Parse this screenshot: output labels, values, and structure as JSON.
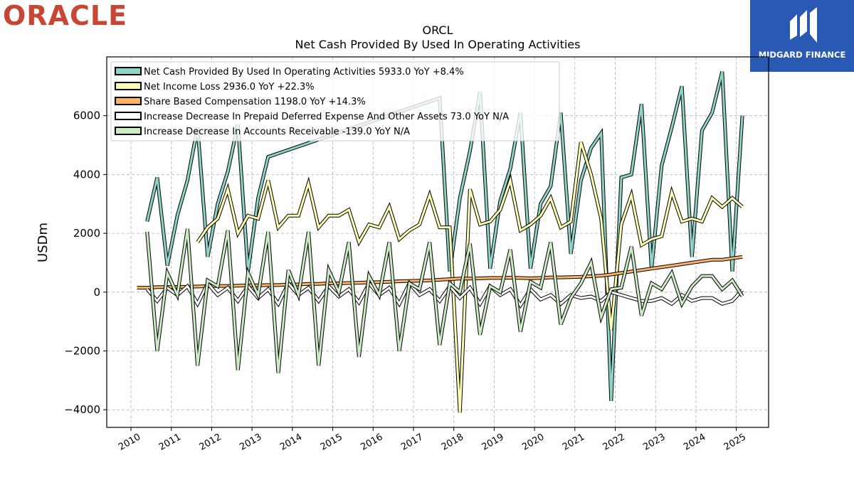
{
  "brand": {
    "left_logo_text": "ORACLE",
    "right_logo_text": "MIDGARD FINANCE"
  },
  "chart_data": {
    "type": "line",
    "title": "ORCL",
    "subtitle": "Net Cash Provided By Used In Operating Activities",
    "xlabel": "",
    "ylabel": "USDm",
    "xlim": [
      2009.4,
      2025.8
    ],
    "ylim": [
      -4600,
      8000
    ],
    "grid": true,
    "legend_position": "top-left",
    "x_ticks": [
      "2010",
      "2011",
      "2012",
      "2013",
      "2014",
      "2015",
      "2016",
      "2017",
      "2018",
      "2019",
      "2020",
      "2021",
      "2022",
      "2023",
      "2024",
      "2025"
    ],
    "y_ticks": [
      -4000,
      -2000,
      0,
      2000,
      4000,
      6000
    ],
    "y_tick_labels": [
      "−4000",
      "−2000",
      "0",
      "2000",
      "4000",
      "6000"
    ],
    "series": [
      {
        "name": "Net Cash Provided By Used In Operating Activities",
        "legend_label": "Net Cash Provided By Used In Operating Activities  5933.0 YoY +8.4%",
        "color": "#8dd3c7",
        "x": [
          2010.4,
          2010.65,
          2010.9,
          2011.15,
          2011.4,
          2011.65,
          2011.9,
          2012.15,
          2012.4,
          2012.65,
          2012.9,
          2013.15,
          2013.4,
          2017.65,
          2017.9,
          2018.15,
          2018.4,
          2018.65,
          2018.9,
          2019.15,
          2019.4,
          2019.65,
          2019.9,
          2020.15,
          2020.4,
          2020.65,
          2020.9,
          2021.15,
          2021.4,
          2021.65,
          2021.9,
          2022.15,
          2022.4,
          2022.65,
          2022.9,
          2023.15,
          2023.4,
          2023.65,
          2023.9,
          2024.15,
          2024.4,
          2024.65,
          2024.9,
          2025.15
        ],
        "y": [
          2400,
          3900,
          900,
          2600,
          3800,
          5600,
          1200,
          3000,
          4100,
          5700,
          700,
          3200,
          4600,
          6600,
          700,
          3200,
          4800,
          6800,
          800,
          3100,
          4200,
          6100,
          800,
          3000,
          3600,
          6100,
          1300,
          3800,
          4900,
          5400,
          -3700,
          3900,
          4000,
          6400,
          800,
          4300,
          5600,
          7000,
          1200,
          5500,
          6100,
          7500,
          700,
          6000
        ]
      },
      {
        "name": "Net Income Loss",
        "legend_label": "Net Income Loss  2936.0 YoY +22.3%",
        "color": "#ffffb3",
        "x": [
          2011.65,
          2011.9,
          2012.15,
          2012.4,
          2012.65,
          2012.9,
          2013.15,
          2013.4,
          2013.65,
          2013.9,
          2014.15,
          2014.4,
          2014.65,
          2014.9,
          2015.15,
          2015.4,
          2015.65,
          2015.9,
          2016.15,
          2016.4,
          2016.65,
          2016.9,
          2017.15,
          2017.4,
          2017.65,
          2017.9,
          2018.15,
          2018.4,
          2018.65,
          2018.9,
          2019.15,
          2019.4,
          2019.65,
          2019.9,
          2020.15,
          2020.4,
          2020.65,
          2020.9,
          2021.15,
          2021.4,
          2021.65,
          2021.9,
          2022.15,
          2022.4,
          2022.65,
          2022.9,
          2023.15,
          2023.4,
          2023.65,
          2023.9,
          2024.15,
          2024.4,
          2024.65,
          2024.9,
          2025.15
        ],
        "y": [
          1700,
          2200,
          2500,
          3500,
          2000,
          2600,
          2500,
          3800,
          2200,
          2600,
          2600,
          3700,
          2200,
          2600,
          2600,
          2800,
          1700,
          2300,
          2200,
          2900,
          1800,
          2100,
          2300,
          3300,
          2200,
          2200,
          -4100,
          3500,
          2300,
          2400,
          2800,
          3800,
          2100,
          2300,
          2600,
          3200,
          2200,
          2400,
          5100,
          4000,
          2500,
          -1300,
          2300,
          3300,
          1600,
          1800,
          1900,
          3400,
          2400,
          2500,
          2400,
          3200,
          2900,
          3200,
          2900
        ]
      },
      {
        "name": "Share Based Compensation",
        "legend_label": "Share Based Compensation  1198.0 YoY +14.3%",
        "color": "#fdb462",
        "x": [
          2010.15,
          2010.4,
          2010.65,
          2010.9,
          2011.15,
          2011.4,
          2011.65,
          2011.9,
          2012.15,
          2012.4,
          2012.65,
          2012.9,
          2013.15,
          2013.4,
          2013.65,
          2013.9,
          2014.15,
          2014.4,
          2014.65,
          2014.9,
          2015.15,
          2015.4,
          2015.65,
          2015.9,
          2016.15,
          2016.4,
          2016.65,
          2016.9,
          2017.15,
          2017.4,
          2017.65,
          2017.9,
          2018.15,
          2018.4,
          2018.65,
          2018.9,
          2019.15,
          2019.4,
          2019.65,
          2019.9,
          2020.15,
          2020.4,
          2020.65,
          2020.9,
          2021.15,
          2021.4,
          2021.65,
          2021.9,
          2022.15,
          2022.4,
          2022.65,
          2022.9,
          2023.15,
          2023.4,
          2023.65,
          2023.9,
          2024.15,
          2024.4,
          2024.65,
          2024.9,
          2025.15
        ],
        "y": [
          150,
          150,
          170,
          170,
          180,
          180,
          190,
          200,
          210,
          210,
          220,
          230,
          230,
          240,
          240,
          260,
          260,
          280,
          280,
          300,
          300,
          310,
          320,
          330,
          340,
          350,
          370,
          380,
          390,
          400,
          420,
          440,
          460,
          460,
          470,
          480,
          480,
          490,
          480,
          470,
          480,
          500,
          500,
          510,
          520,
          540,
          560,
          600,
          650,
          700,
          750,
          800,
          850,
          900,
          950,
          1000,
          1050,
          1100,
          1100,
          1150,
          1198
        ]
      },
      {
        "name": "Increase Decrease In Prepaid Deferred Expense And Other Assets",
        "legend_label": "Increase Decrease In Prepaid Deferred Expense And Other Assets  73.0 YoY N/A",
        "color": "#ffffff",
        "x": [
          2010.4,
          2010.65,
          2010.9,
          2011.15,
          2011.4,
          2011.65,
          2011.9,
          2012.15,
          2012.4,
          2012.65,
          2012.9,
          2013.15,
          2013.4,
          2013.65,
          2013.9,
          2014.15,
          2014.4,
          2014.65,
          2014.9,
          2015.15,
          2015.4,
          2015.65,
          2015.9,
          2016.15,
          2016.4,
          2016.65,
          2016.9,
          2017.15,
          2017.4,
          2017.65,
          2017.9,
          2018.15,
          2018.4,
          2018.65,
          2018.9,
          2019.15,
          2019.4,
          2019.65,
          2019.9,
          2020.15,
          2020.4,
          2020.65,
          2020.9,
          2021.15,
          2021.4,
          2021.65,
          2021.9,
          2022.15,
          2022.4,
          2022.65,
          2022.9,
          2023.15,
          2023.4,
          2023.65,
          2023.9,
          2024.15,
          2024.4,
          2024.65,
          2024.9,
          2025.15
        ],
        "y": [
          100,
          -300,
          150,
          -100,
          200,
          -400,
          300,
          -100,
          150,
          -300,
          200,
          -200,
          100,
          -400,
          300,
          -100,
          150,
          -300,
          200,
          -150,
          100,
          -350,
          300,
          -100,
          150,
          -400,
          300,
          -100,
          100,
          -300,
          200,
          -200,
          150,
          -400,
          200,
          -100,
          100,
          -450,
          100,
          -250,
          -100,
          -400,
          -100,
          -200,
          -150,
          -300,
          0,
          -100,
          -200,
          -300,
          -300,
          -200,
          -400,
          -100,
          -300,
          -200,
          -200,
          -400,
          -300,
          73
        ]
      },
      {
        "name": "Increase Decrease In Accounts Receivable",
        "legend_label": "Increase Decrease In Accounts Receivable  -139.0 YoY N/A",
        "color": "#ccebc5",
        "x": [
          2010.4,
          2010.65,
          2010.9,
          2011.15,
          2011.4,
          2011.65,
          2011.9,
          2012.15,
          2012.4,
          2012.65,
          2012.9,
          2013.15,
          2013.4,
          2013.65,
          2013.9,
          2014.15,
          2014.4,
          2014.65,
          2014.9,
          2015.15,
          2015.4,
          2015.65,
          2015.9,
          2016.15,
          2016.4,
          2016.65,
          2016.9,
          2017.15,
          2017.4,
          2017.65,
          2017.9,
          2018.15,
          2018.4,
          2018.65,
          2018.9,
          2019.15,
          2019.4,
          2019.65,
          2019.9,
          2020.15,
          2020.4,
          2020.65,
          2020.9,
          2021.15,
          2021.4,
          2021.65,
          2021.9,
          2022.15,
          2022.4,
          2022.65,
          2022.9,
          2023.15,
          2023.4,
          2023.65,
          2023.9,
          2024.15,
          2024.4,
          2024.65,
          2024.9,
          2025.15
        ],
        "y": [
          2050,
          -2000,
          650,
          -100,
          2150,
          -2500,
          400,
          200,
          2100,
          -2650,
          650,
          -100,
          2050,
          -2750,
          750,
          -100,
          2050,
          -2500,
          750,
          0,
          1700,
          -2200,
          550,
          -100,
          1700,
          -2000,
          300,
          100,
          1700,
          -1800,
          300,
          0,
          1650,
          -1450,
          200,
          0,
          1450,
          -1350,
          350,
          150,
          1700,
          -1100,
          -200,
          300,
          1000,
          -850,
          100,
          150,
          1550,
          -800,
          300,
          100,
          650,
          -400,
          200,
          550,
          550,
          100,
          400,
          -139
        ]
      }
    ]
  }
}
